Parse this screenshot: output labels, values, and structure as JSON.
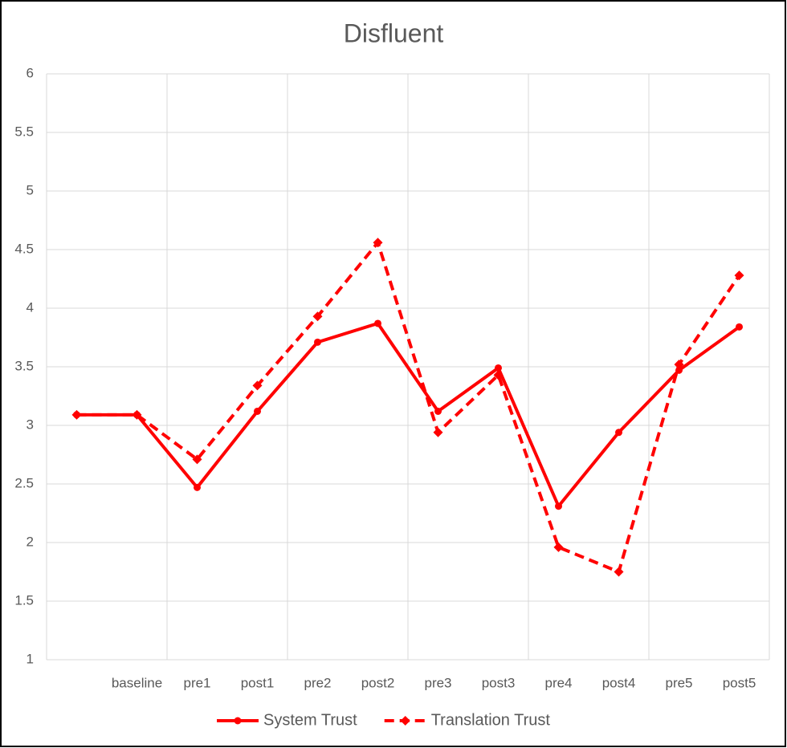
{
  "chart_data": {
    "type": "line",
    "title": "Disfluent",
    "categories": [
      null,
      "baseline",
      "pre1",
      "post1",
      "pre2",
      "post2",
      "pre3",
      "post3",
      "pre4",
      "post4",
      "pre5",
      "post5"
    ],
    "series": [
      {
        "name": "System Trust",
        "color": "#ff0000",
        "line_style": "solid",
        "marker": "circle",
        "values": [
          3.09,
          3.09,
          2.47,
          3.12,
          3.71,
          3.87,
          3.12,
          3.49,
          2.31,
          2.94,
          3.47,
          3.84
        ]
      },
      {
        "name": "Translation Trust",
        "color": "#ff0000",
        "line_style": "dashed",
        "marker": "diamond",
        "values": [
          3.09,
          3.09,
          2.71,
          3.34,
          3.93,
          4.56,
          2.94,
          3.43,
          1.96,
          1.75,
          3.52,
          4.28
        ]
      }
    ],
    "ylim": [
      1,
      6
    ],
    "yticks": [
      1,
      1.5,
      2,
      2.5,
      3,
      3.5,
      4,
      4.5,
      5,
      5.5,
      6
    ],
    "grid": true,
    "legend": "bottom"
  }
}
